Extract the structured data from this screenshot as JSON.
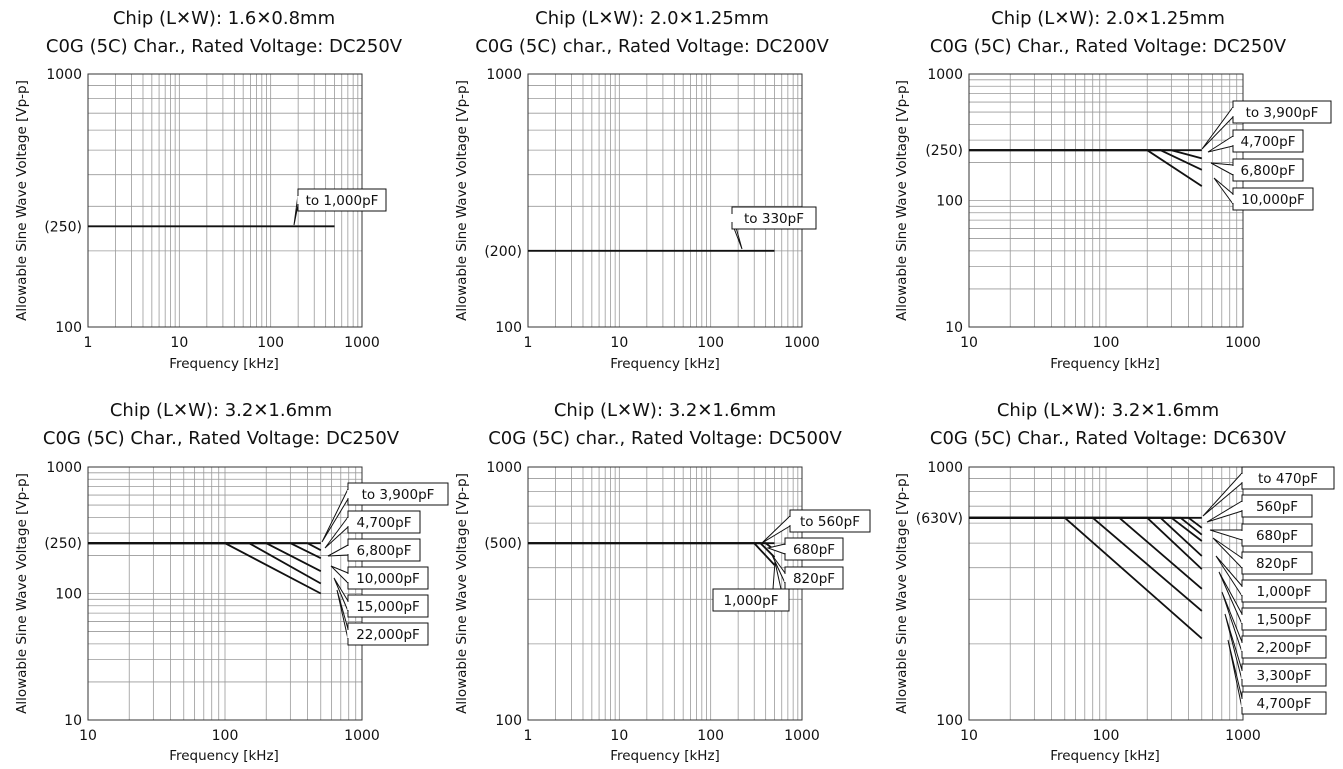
{
  "chart_data": [
    {
      "type": "line",
      "title_line1": "Chip (L✕W): 1.6✕0.8mm",
      "title_line2": "C0G (5C) Char., Rated Voltage: DC250V",
      "xlabel": "Frequency [kHz]",
      "ylabel": "Allowable Sine Wave Voltage [Vp-p]",
      "xscale": "log",
      "yscale": "log",
      "xlim": [
        1,
        1000
      ],
      "ylim": [
        100,
        1000
      ],
      "x_ticks": [
        {
          "value": 1,
          "label": "1"
        },
        {
          "value": 10,
          "label": "10"
        },
        {
          "value": 100,
          "label": "100"
        },
        {
          "value": 1000,
          "label": "1000"
        }
      ],
      "y_ticks": [
        {
          "value": 100,
          "label": "100"
        },
        {
          "value": 250,
          "label": "(250)"
        },
        {
          "value": 1000,
          "label": "1000"
        }
      ],
      "grid": true,
      "series": [
        {
          "name": "to 1,000pF",
          "points": [
            [
              1,
              250
            ],
            [
              500,
              250
            ]
          ]
        }
      ]
    },
    {
      "type": "line",
      "title_line1": "Chip (L✕W): 2.0✕1.25mm",
      "title_line2": "C0G (5C) char., Rated Voltage: DC200V",
      "xlabel": "Frequency [kHz]",
      "ylabel": "Allowable Sine Wave Voltage [Vp-p]",
      "xscale": "log",
      "yscale": "log",
      "xlim": [
        1,
        1000
      ],
      "ylim": [
        100,
        1000
      ],
      "x_ticks": [
        {
          "value": 1,
          "label": "1"
        },
        {
          "value": 10,
          "label": "10"
        },
        {
          "value": 100,
          "label": "100"
        },
        {
          "value": 1000,
          "label": "1000"
        }
      ],
      "y_ticks": [
        {
          "value": 100,
          "label": "100"
        },
        {
          "value": 200,
          "label": "(200)"
        },
        {
          "value": 1000,
          "label": "1000"
        }
      ],
      "grid": true,
      "series": [
        {
          "name": "to 330pF",
          "points": [
            [
              1,
              200
            ],
            [
              500,
              200
            ]
          ]
        }
      ]
    },
    {
      "type": "line",
      "title_line1": "Chip (L✕W): 2.0✕1.25mm",
      "title_line2": "C0G (5C) Char., Rated Voltage: DC250V",
      "xlabel": "Frequency [kHz]",
      "ylabel": "Allowable Sine Wave Voltage [Vp-p]",
      "xscale": "log",
      "yscale": "log",
      "xlim": [
        10,
        1000
      ],
      "ylim": [
        10,
        1000
      ],
      "x_ticks": [
        {
          "value": 10,
          "label": "10"
        },
        {
          "value": 100,
          "label": "100"
        },
        {
          "value": 1000,
          "label": "1000"
        }
      ],
      "y_ticks": [
        {
          "value": 10,
          "label": "10"
        },
        {
          "value": 100,
          "label": "100"
        },
        {
          "value": 250,
          "label": "(250)"
        },
        {
          "value": 1000,
          "label": "1000"
        }
      ],
      "grid": true,
      "series": [
        {
          "name": "to 3,900pF",
          "points": [
            [
              10,
              250
            ],
            [
              500,
              250
            ]
          ]
        },
        {
          "name": "4,700pF",
          "points": [
            [
              10,
              250
            ],
            [
              300,
              250
            ],
            [
              500,
              215
            ]
          ]
        },
        {
          "name": "6,800pF",
          "points": [
            [
              10,
              250
            ],
            [
              250,
              250
            ],
            [
              500,
              175
            ]
          ]
        },
        {
          "name": "10,000pF",
          "points": [
            [
              10,
              250
            ],
            [
              200,
              250
            ],
            [
              500,
              130
            ]
          ]
        }
      ]
    },
    {
      "type": "line",
      "title_line1": "Chip (L✕W): 3.2✕1.6mm",
      "title_line2": "C0G (5C) Char., Rated Voltage: DC250V",
      "xlabel": "Frequency [kHz]",
      "ylabel": "Allowable Sine Wave Voltage [Vp-p]",
      "xscale": "log",
      "yscale": "log",
      "xlim": [
        10,
        1000
      ],
      "ylim": [
        10,
        1000
      ],
      "x_ticks": [
        {
          "value": 10,
          "label": "10"
        },
        {
          "value": 100,
          "label": "100"
        },
        {
          "value": 1000,
          "label": "1000"
        }
      ],
      "y_ticks": [
        {
          "value": 10,
          "label": "10"
        },
        {
          "value": 100,
          "label": "100"
        },
        {
          "value": 250,
          "label": "(250)"
        },
        {
          "value": 1000,
          "label": "1000"
        }
      ],
      "grid": true,
      "series": [
        {
          "name": "to 3,900pF",
          "points": [
            [
              10,
              250
            ],
            [
              500,
              250
            ]
          ]
        },
        {
          "name": "4,700pF",
          "points": [
            [
              10,
              250
            ],
            [
              400,
              250
            ],
            [
              500,
              220
            ]
          ]
        },
        {
          "name": "6,800pF",
          "points": [
            [
              10,
              250
            ],
            [
              300,
              250
            ],
            [
              500,
              190
            ]
          ]
        },
        {
          "name": "10,000pF",
          "points": [
            [
              10,
              250
            ],
            [
              200,
              250
            ],
            [
              500,
              150
            ]
          ]
        },
        {
          "name": "15,000pF",
          "points": [
            [
              10,
              250
            ],
            [
              150,
              250
            ],
            [
              500,
              120
            ]
          ]
        },
        {
          "name": "22,000pF",
          "points": [
            [
              10,
              250
            ],
            [
              100,
              250
            ],
            [
              500,
              100
            ]
          ]
        }
      ]
    },
    {
      "type": "line",
      "title_line1": "Chip (L✕W): 3.2✕1.6mm",
      "title_line2": "C0G (5C) char., Rated Voltage: DC500V",
      "xlabel": "Frequency [kHz]",
      "ylabel": "Allowable Sine Wave Voltage [Vp-p]",
      "xscale": "log",
      "yscale": "log",
      "xlim": [
        1,
        1000
      ],
      "ylim": [
        100,
        1000
      ],
      "x_ticks": [
        {
          "value": 1,
          "label": "1"
        },
        {
          "value": 10,
          "label": "10"
        },
        {
          "value": 100,
          "label": "100"
        },
        {
          "value": 1000,
          "label": "1000"
        }
      ],
      "y_ticks": [
        {
          "value": 100,
          "label": "100"
        },
        {
          "value": 500,
          "label": "(500)"
        },
        {
          "value": 1000,
          "label": "1000"
        }
      ],
      "grid": true,
      "series": [
        {
          "name": "to 560pF",
          "points": [
            [
              1,
              500
            ],
            [
              500,
              500
            ]
          ]
        },
        {
          "name": "680pF",
          "points": [
            [
              1,
              500
            ],
            [
              400,
              500
            ],
            [
              500,
              470
            ]
          ]
        },
        {
          "name": "820pF",
          "points": [
            [
              1,
              500
            ],
            [
              350,
              500
            ],
            [
              500,
              440
            ]
          ]
        },
        {
          "name": "1,000pF",
          "points": [
            [
              1,
              500
            ],
            [
              300,
              500
            ],
            [
              500,
              410
            ]
          ]
        }
      ]
    },
    {
      "type": "line",
      "title_line1": "Chip (L✕W): 3.2✕1.6mm",
      "title_line2": "C0G (5C) Char., Rated Voltage: DC630V",
      "xlabel": "Frequency [kHz]",
      "ylabel": "Allowable Sine Wave Voltage [Vp-p]",
      "xscale": "log",
      "yscale": "log",
      "xlim": [
        10,
        1000
      ],
      "ylim": [
        100,
        1000
      ],
      "x_ticks": [
        {
          "value": 10,
          "label": "10"
        },
        {
          "value": 100,
          "label": "100"
        },
        {
          "value": 1000,
          "label": "1000"
        }
      ],
      "y_ticks": [
        {
          "value": 100,
          "label": "100"
        },
        {
          "value": 630,
          "label": "(630V)"
        },
        {
          "value": 1000,
          "label": "1000"
        }
      ],
      "grid": true,
      "series": [
        {
          "name": "to 470pF",
          "points": [
            [
              10,
              630
            ],
            [
              500,
              630
            ]
          ]
        },
        {
          "name": "560pF",
          "points": [
            [
              10,
              630
            ],
            [
              400,
              630
            ],
            [
              500,
              575
            ]
          ]
        },
        {
          "name": "680pF",
          "points": [
            [
              10,
              630
            ],
            [
              350,
              630
            ],
            [
              500,
              540
            ]
          ]
        },
        {
          "name": "820pF",
          "points": [
            [
              10,
              630
            ],
            [
              300,
              630
            ],
            [
              500,
              510
            ]
          ]
        },
        {
          "name": "1,000pF",
          "points": [
            [
              10,
              630
            ],
            [
              250,
              630
            ],
            [
              500,
              445
            ]
          ]
        },
        {
          "name": "1,500pF",
          "points": [
            [
              10,
              630
            ],
            [
              200,
              630
            ],
            [
              500,
              395
            ]
          ]
        },
        {
          "name": "2,200pF",
          "points": [
            [
              10,
              630
            ],
            [
              125,
              630
            ],
            [
              500,
              330
            ]
          ]
        },
        {
          "name": "3,300pF",
          "points": [
            [
              10,
              630
            ],
            [
              80,
              630
            ],
            [
              500,
              270
            ]
          ]
        },
        {
          "name": "4,700pF",
          "points": [
            [
              10,
              630
            ],
            [
              50,
              630
            ],
            [
              500,
              210
            ]
          ]
        }
      ]
    }
  ]
}
